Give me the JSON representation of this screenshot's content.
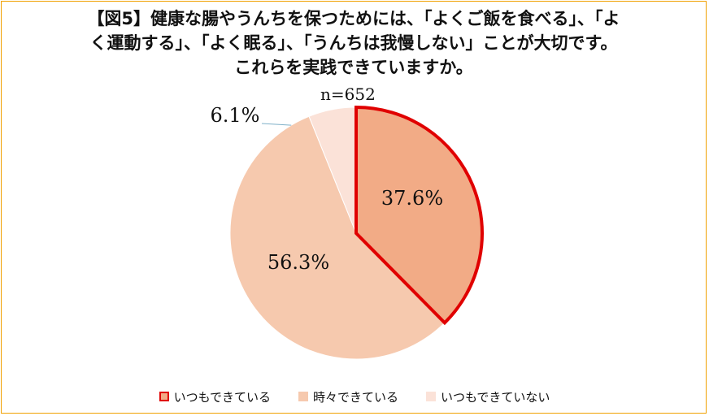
{
  "title_lines": [
    "【図5】健康な腸やうんちを保つためには、「よくご飯を食べる」、「よ",
    "く運動する」、「よく眠る」、「うんちは我慢しない」ことが大切です。",
    "これらを実践できていますか。"
  ],
  "n_label": "n=652",
  "colors": {
    "frame": "#f0a000",
    "highlight_border": "#e00000",
    "slice_1": "#f2ab86",
    "slice_2": "#f6c9ae",
    "slice_3": "#fbe2d8"
  },
  "chart_data": {
    "type": "pie",
    "start_angle_deg": 0,
    "direction": "clockwise",
    "slices": [
      {
        "label": "いつもできている",
        "value": 37.6,
        "display": "37.6%",
        "color": "#f2ab86",
        "highlight": true
      },
      {
        "label": "時々できている",
        "value": 56.3,
        "display": "56.3%",
        "color": "#f6c9ae",
        "highlight": false
      },
      {
        "label": "いつもできていない",
        "value": 6.1,
        "display": "6.1%",
        "color": "#fbe2d8",
        "highlight": false
      }
    ],
    "legend_position": "bottom"
  }
}
